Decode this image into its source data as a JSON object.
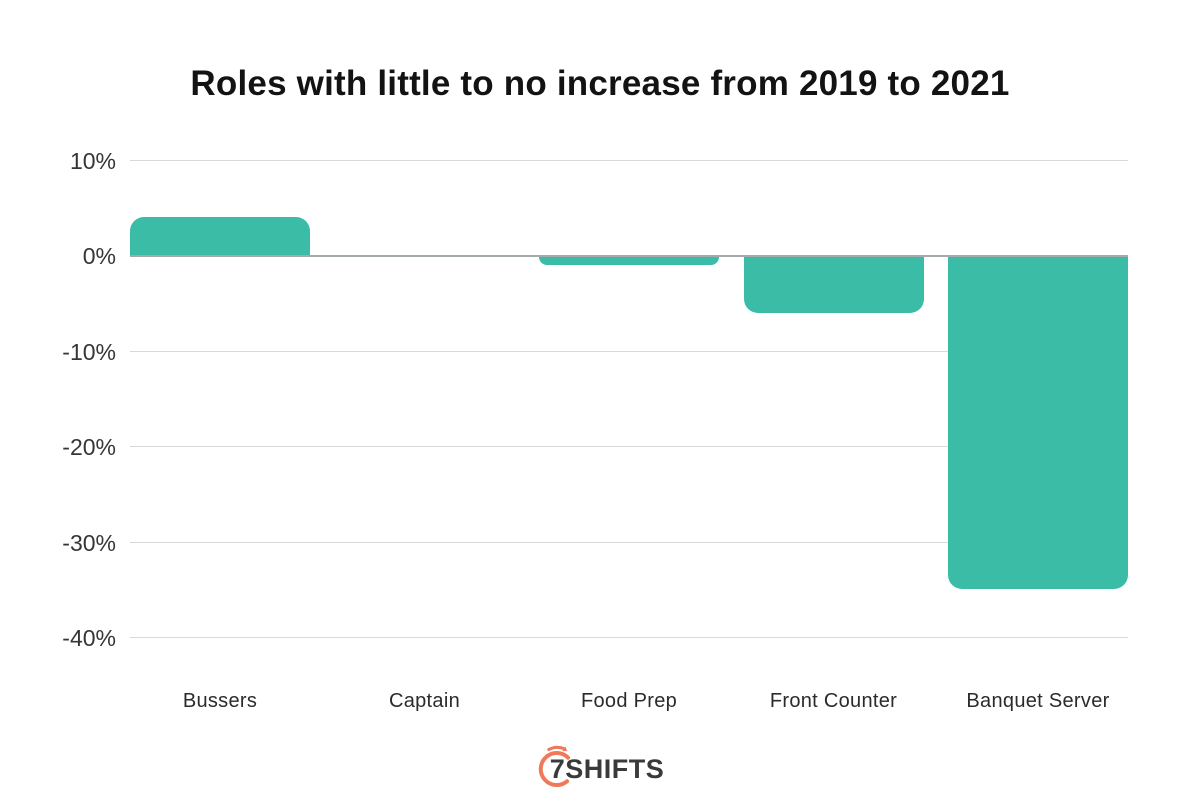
{
  "chart_data": {
    "type": "bar",
    "title": "Roles with little to no increase from 2019 to 2021",
    "categories": [
      "Bussers",
      "Captain",
      "Food Prep",
      "Front Counter",
      "Banquet Server"
    ],
    "values": [
      4,
      0,
      -1,
      -6,
      -35
    ],
    "unit": "%",
    "xlabel": "",
    "ylabel": "",
    "ylim": [
      -40,
      10
    ],
    "yticks": [
      10,
      0,
      -10,
      -20,
      -30,
      -40
    ],
    "ytick_labels": [
      "10%",
      "0%",
      "-10%",
      "-20%",
      "-30%",
      "-40%"
    ],
    "grid": true,
    "legend": false
  },
  "colors": {
    "bar": "#3BBCA7",
    "gridline": "#D9D9D9",
    "zero_line": "#A4AAAC",
    "title": "#131313",
    "axis_label": "#363636",
    "logo_arc": "#F1795B",
    "logo_text": "#3A3A3A",
    "background": "#FFFFFF"
  },
  "footer": {
    "logo_text": "7SHIFTS",
    "logo_mark": "stopwatch-arc-icon"
  }
}
